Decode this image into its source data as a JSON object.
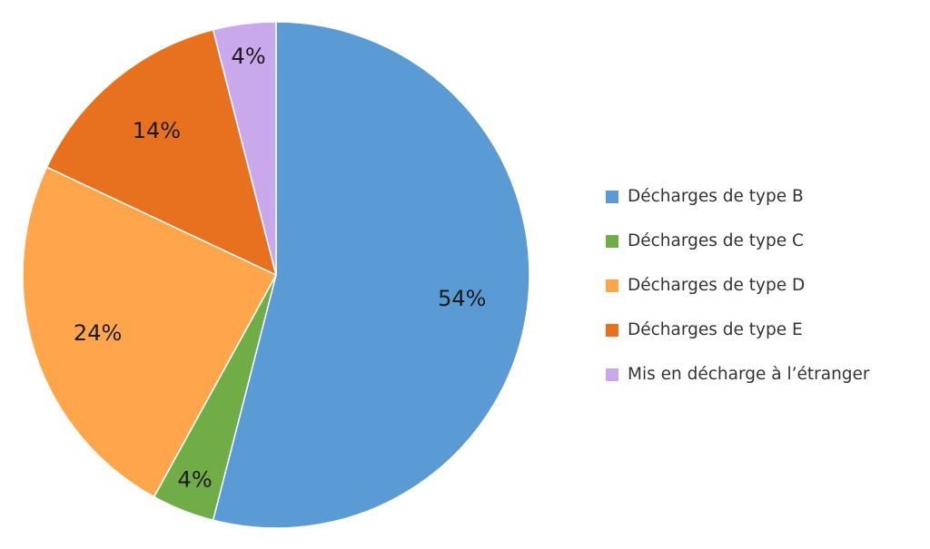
{
  "chart_data": {
    "type": "pie",
    "title": "",
    "categories": [
      "Décharges de type B",
      "Décharges de type C",
      "Décharges de type D",
      "Décharges de type E",
      "Mis en décharge à l’étranger"
    ],
    "values": [
      54,
      4,
      24,
      14,
      4
    ],
    "labels": [
      "54%",
      "4%",
      "24%",
      "14%",
      "4%"
    ],
    "colors": [
      "#5B9BD5",
      "#70AD47",
      "#FFA64D",
      "#E8711F",
      "#C9A9EC"
    ],
    "start_angle": "12 o'clock",
    "direction": "clockwise",
    "legend_position": "right"
  }
}
